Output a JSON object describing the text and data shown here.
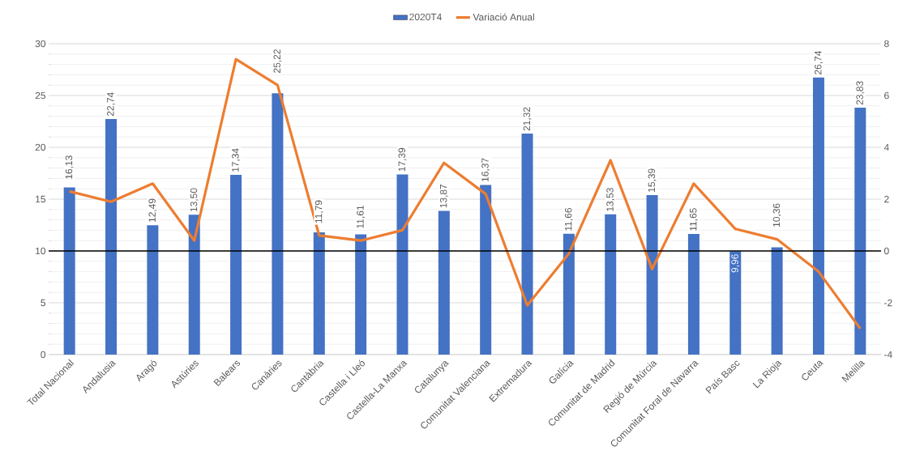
{
  "chart_data": {
    "type": "bar",
    "categories": [
      "Total Nacional",
      "Andalusia",
      "Aragó",
      "Astúries",
      "Balears",
      "Canàries",
      "Cantàbria",
      "Castella i Lleó",
      "Castella-La Manxa",
      "Catalunya",
      "Comunitat Valenciana",
      "Extremadura",
      "Galícia",
      "Comunitat de Madrid",
      "Regió de Múrcia",
      "Comunitat Foral de Navarra",
      "País Basc",
      "La Rioja",
      "Ceuta",
      "Melilla"
    ],
    "series": [
      {
        "name": "2020T4",
        "color": "#4472c4",
        "values": [
          16.13,
          22.74,
          12.49,
          13.5,
          17.34,
          25.22,
          11.79,
          11.61,
          17.39,
          13.87,
          16.37,
          21.32,
          11.66,
          13.53,
          15.39,
          11.65,
          9.96,
          10.36,
          26.74,
          23.83
        ],
        "value_labels": [
          "16,13",
          "22,74",
          "12,49",
          "13,50",
          "17,34",
          "25,22",
          "11,79",
          "11,61",
          "17,39",
          "13,87",
          "16,37",
          "21,32",
          "11,66",
          "13,53",
          "15,39",
          "11,65",
          "9,96",
          "10,36",
          "26,74",
          "23,83"
        ]
      },
      {
        "name": "Variació Anual",
        "type": "line",
        "axis": "y2",
        "color": "#ed7d31",
        "values": [
          2.3,
          1.9,
          2.6,
          0.4,
          7.4,
          6.4,
          0.6,
          0.4,
          0.8,
          3.4,
          2.2,
          -2.1,
          -0.1,
          3.5,
          -0.7,
          2.6,
          0.85,
          0.45,
          -0.8,
          -3.0
        ]
      }
    ],
    "ylim": [
      0,
      30
    ],
    "yticks": [
      0,
      5,
      10,
      15,
      20,
      25,
      30
    ],
    "y2lim": [
      -4,
      8
    ],
    "y2ticks": [
      -4,
      -2,
      0,
      2,
      4,
      6,
      8
    ],
    "grid": "y",
    "legend": "top",
    "marker": "none",
    "line_style": "solid",
    "ref_lines": [
      {
        "axis": "y2",
        "value": 0,
        "color": "#000000"
      }
    ]
  }
}
